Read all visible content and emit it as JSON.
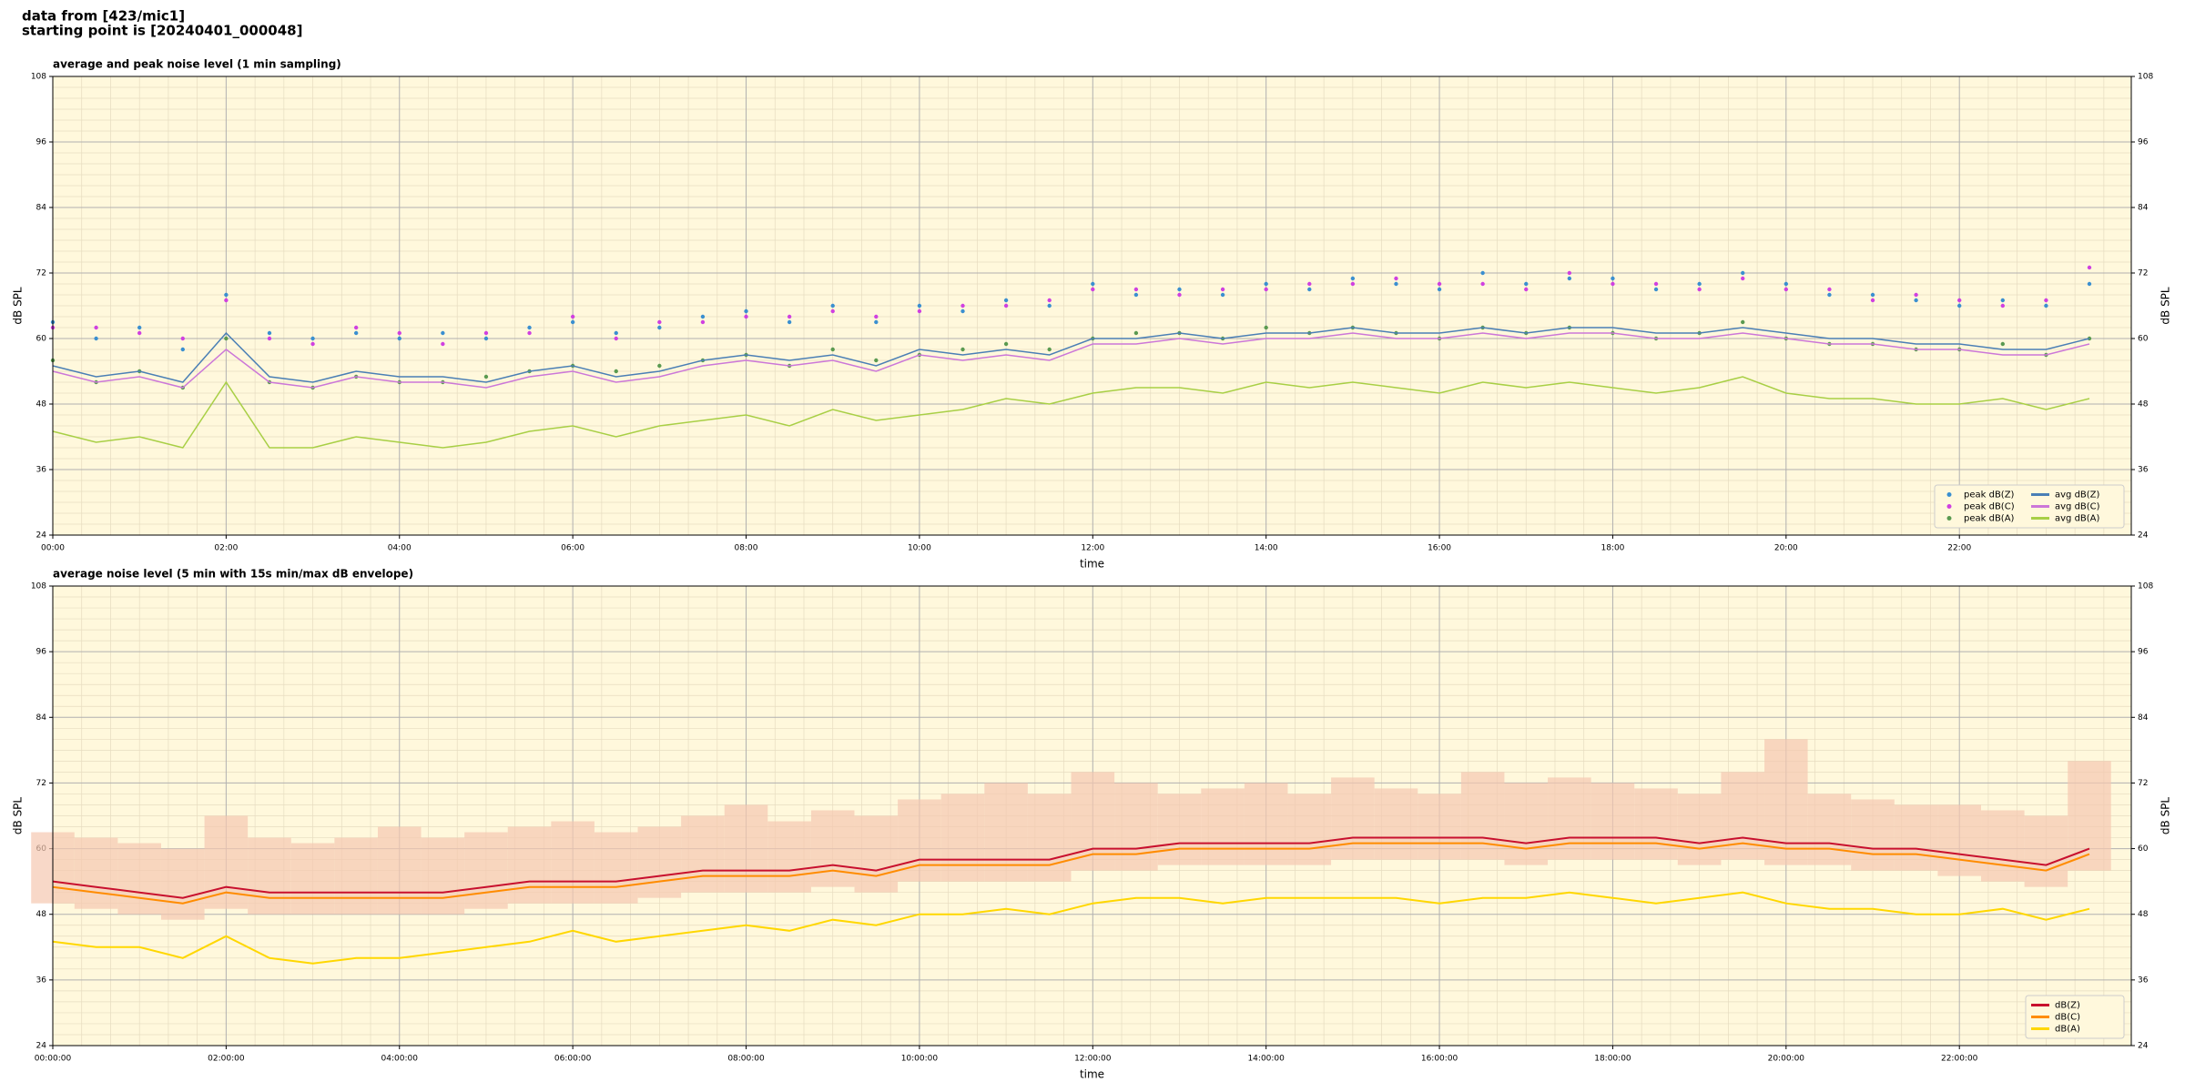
{
  "header": {
    "lines": [
      "data from [423/mic1]",
      "starting point is [20240401_000048]"
    ]
  },
  "chart_data": [
    {
      "type": "line",
      "title": "average and peak noise level (1 min sampling)",
      "x_label": "time",
      "y_label": "dB SPL",
      "xlim": [
        0,
        1439
      ],
      "ylim": [
        24,
        108
      ],
      "xticks": [
        {
          "value": 0,
          "label": "00:00"
        },
        {
          "value": 120,
          "label": "02:00"
        },
        {
          "value": 240,
          "label": "04:00"
        },
        {
          "value": 360,
          "label": "06:00"
        },
        {
          "value": 480,
          "label": "08:00"
        },
        {
          "value": 600,
          "label": "10:00"
        },
        {
          "value": 720,
          "label": "12:00"
        },
        {
          "value": 840,
          "label": "14:00"
        },
        {
          "value": 960,
          "label": "16:00"
        },
        {
          "value": 1080,
          "label": "18:00"
        },
        {
          "value": 1200,
          "label": "20:00"
        },
        {
          "value": 1320,
          "label": "22:00"
        }
      ],
      "yticks": [
        24,
        36,
        48,
        60,
        72,
        84,
        96,
        108
      ],
      "grid": true,
      "minor_grid": true,
      "legend": "lower right",
      "background": "#fff8dc",
      "x": [
        0,
        30,
        60,
        90,
        120,
        150,
        180,
        210,
        240,
        270,
        300,
        330,
        360,
        390,
        420,
        450,
        480,
        510,
        540,
        570,
        600,
        630,
        660,
        690,
        720,
        750,
        780,
        810,
        840,
        870,
        900,
        930,
        960,
        990,
        1020,
        1050,
        1080,
        1110,
        1140,
        1170,
        1200,
        1230,
        1260,
        1290,
        1320,
        1350,
        1380,
        1410
      ],
      "series": [
        {
          "name": "peak dB(Z)",
          "style": "dots",
          "color": "#3a8fd0",
          "values": [
            63,
            60,
            62,
            58,
            68,
            61,
            60,
            61,
            60,
            61,
            60,
            62,
            63,
            61,
            62,
            64,
            65,
            63,
            66,
            63,
            66,
            65,
            67,
            66,
            70,
            68,
            69,
            68,
            70,
            69,
            71,
            70,
            69,
            72,
            70,
            71,
            71,
            69,
            70,
            72,
            70,
            68,
            68,
            67,
            66,
            67,
            66,
            70
          ]
        },
        {
          "name": "peak dB(C)",
          "style": "dots",
          "color": "#d040e0",
          "values": [
            62,
            62,
            61,
            60,
            67,
            60,
            59,
            62,
            61,
            59,
            61,
            61,
            64,
            60,
            63,
            63,
            64,
            64,
            65,
            64,
            65,
            66,
            66,
            67,
            69,
            69,
            68,
            69,
            69,
            70,
            70,
            71,
            70,
            70,
            69,
            72,
            70,
            70,
            69,
            71,
            69,
            69,
            67,
            68,
            67,
            66,
            67,
            73
          ]
        },
        {
          "name": "peak dB(A)",
          "style": "dots",
          "color": "#5a9a50",
          "values": [
            56,
            52,
            54,
            51,
            60,
            52,
            51,
            53,
            52,
            52,
            53,
            54,
            55,
            54,
            55,
            56,
            57,
            55,
            58,
            56,
            57,
            58,
            59,
            58,
            60,
            61,
            61,
            60,
            62,
            61,
            62,
            61,
            60,
            62,
            61,
            62,
            61,
            60,
            61,
            63,
            60,
            59,
            59,
            58,
            58,
            59,
            57,
            60
          ]
        },
        {
          "name": "avg dB(Z)",
          "style": "line",
          "color": "#4a7fb5",
          "values": [
            55,
            53,
            54,
            52,
            61,
            53,
            52,
            54,
            53,
            53,
            52,
            54,
            55,
            53,
            54,
            56,
            57,
            56,
            57,
            55,
            58,
            57,
            58,
            57,
            60,
            60,
            61,
            60,
            61,
            61,
            62,
            61,
            61,
            62,
            61,
            62,
            62,
            61,
            61,
            62,
            61,
            60,
            60,
            59,
            59,
            58,
            58,
            60
          ]
        },
        {
          "name": "avg dB(C)",
          "style": "line",
          "color": "#cc77d8",
          "values": [
            54,
            52,
            53,
            51,
            58,
            52,
            51,
            53,
            52,
            52,
            51,
            53,
            54,
            52,
            53,
            55,
            56,
            55,
            56,
            54,
            57,
            56,
            57,
            56,
            59,
            59,
            60,
            59,
            60,
            60,
            61,
            60,
            60,
            61,
            60,
            61,
            61,
            60,
            60,
            61,
            60,
            59,
            59,
            58,
            58,
            57,
            57,
            59
          ]
        },
        {
          "name": "avg dB(A)",
          "style": "line",
          "color": "#a8cf45",
          "values": [
            43,
            41,
            42,
            40,
            52,
            40,
            40,
            42,
            41,
            40,
            41,
            43,
            44,
            42,
            44,
            45,
            46,
            44,
            47,
            45,
            46,
            47,
            49,
            48,
            50,
            51,
            51,
            50,
            52,
            51,
            52,
            51,
            50,
            52,
            51,
            52,
            51,
            50,
            51,
            53,
            50,
            49,
            49,
            48,
            48,
            49,
            47,
            49
          ]
        }
      ]
    },
    {
      "type": "line",
      "title": "average noise level (5 min with 15s min/max dB envelope)",
      "x_label": "time",
      "y_label": "dB SPL",
      "xlim": [
        0,
        1439
      ],
      "ylim": [
        24,
        108
      ],
      "xticks": [
        {
          "value": 0,
          "label": "00:00:00"
        },
        {
          "value": 120,
          "label": "02:00:00"
        },
        {
          "value": 240,
          "label": "04:00:00"
        },
        {
          "value": 360,
          "label": "06:00:00"
        },
        {
          "value": 480,
          "label": "08:00:00"
        },
        {
          "value": 600,
          "label": "10:00:00"
        },
        {
          "value": 720,
          "label": "12:00:00"
        },
        {
          "value": 840,
          "label": "14:00:00"
        },
        {
          "value": 960,
          "label": "16:00:00"
        },
        {
          "value": 1080,
          "label": "18:00:00"
        },
        {
          "value": 1200,
          "label": "20:00:00"
        },
        {
          "value": 1320,
          "label": "22:00:00"
        }
      ],
      "yticks": [
        24,
        36,
        48,
        60,
        72,
        84,
        96,
        108
      ],
      "grid": true,
      "minor_grid": true,
      "legend": "lower right",
      "background": "#fff8dc",
      "x": [
        0,
        30,
        60,
        90,
        120,
        150,
        180,
        210,
        240,
        270,
        300,
        330,
        360,
        390,
        420,
        450,
        480,
        510,
        540,
        570,
        600,
        630,
        660,
        690,
        720,
        750,
        780,
        810,
        840,
        870,
        900,
        930,
        960,
        990,
        1020,
        1050,
        1080,
        1110,
        1140,
        1170,
        1200,
        1230,
        1260,
        1290,
        1320,
        1350,
        1380,
        1410
      ],
      "envelope": {
        "color": "#f5c8b0",
        "lower": [
          50,
          49,
          48,
          47,
          49,
          48,
          48,
          48,
          48,
          48,
          49,
          50,
          50,
          50,
          51,
          52,
          52,
          52,
          53,
          52,
          54,
          54,
          54,
          54,
          56,
          56,
          57,
          57,
          57,
          57,
          58,
          58,
          58,
          58,
          57,
          58,
          58,
          58,
          57,
          58,
          57,
          57,
          56,
          56,
          55,
          54,
          53,
          56
        ],
        "upper": [
          63,
          62,
          61,
          60,
          66,
          62,
          61,
          62,
          64,
          62,
          63,
          64,
          65,
          63,
          64,
          66,
          68,
          65,
          67,
          66,
          69,
          70,
          72,
          70,
          74,
          72,
          70,
          71,
          72,
          70,
          73,
          71,
          70,
          74,
          72,
          73,
          72,
          71,
          70,
          74,
          80,
          70,
          69,
          68,
          68,
          67,
          66,
          76
        ]
      },
      "series": [
        {
          "name": "dB(Z)",
          "style": "line",
          "color": "#c8102e",
          "values": [
            54,
            53,
            52,
            51,
            53,
            52,
            52,
            52,
            52,
            52,
            53,
            54,
            54,
            54,
            55,
            56,
            56,
            56,
            57,
            56,
            58,
            58,
            58,
            58,
            60,
            60,
            61,
            61,
            61,
            61,
            62,
            62,
            62,
            62,
            61,
            62,
            62,
            62,
            61,
            62,
            61,
            61,
            60,
            60,
            59,
            58,
            57,
            60
          ]
        },
        {
          "name": "dB(C)",
          "style": "line",
          "color": "#ff8c00",
          "values": [
            53,
            52,
            51,
            50,
            52,
            51,
            51,
            51,
            51,
            51,
            52,
            53,
            53,
            53,
            54,
            55,
            55,
            55,
            56,
            55,
            57,
            57,
            57,
            57,
            59,
            59,
            60,
            60,
            60,
            60,
            61,
            61,
            61,
            61,
            60,
            61,
            61,
            61,
            60,
            61,
            60,
            60,
            59,
            59,
            58,
            57,
            56,
            59
          ]
        },
        {
          "name": "dB(A)",
          "style": "line",
          "color": "#ffd700",
          "values": [
            43,
            42,
            42,
            40,
            44,
            40,
            39,
            40,
            40,
            41,
            42,
            43,
            45,
            43,
            44,
            45,
            46,
            45,
            47,
            46,
            48,
            48,
            49,
            48,
            50,
            51,
            51,
            50,
            51,
            51,
            51,
            51,
            50,
            51,
            51,
            52,
            51,
            50,
            51,
            52,
            50,
            49,
            49,
            48,
            48,
            49,
            47,
            49
          ]
        }
      ]
    }
  ]
}
